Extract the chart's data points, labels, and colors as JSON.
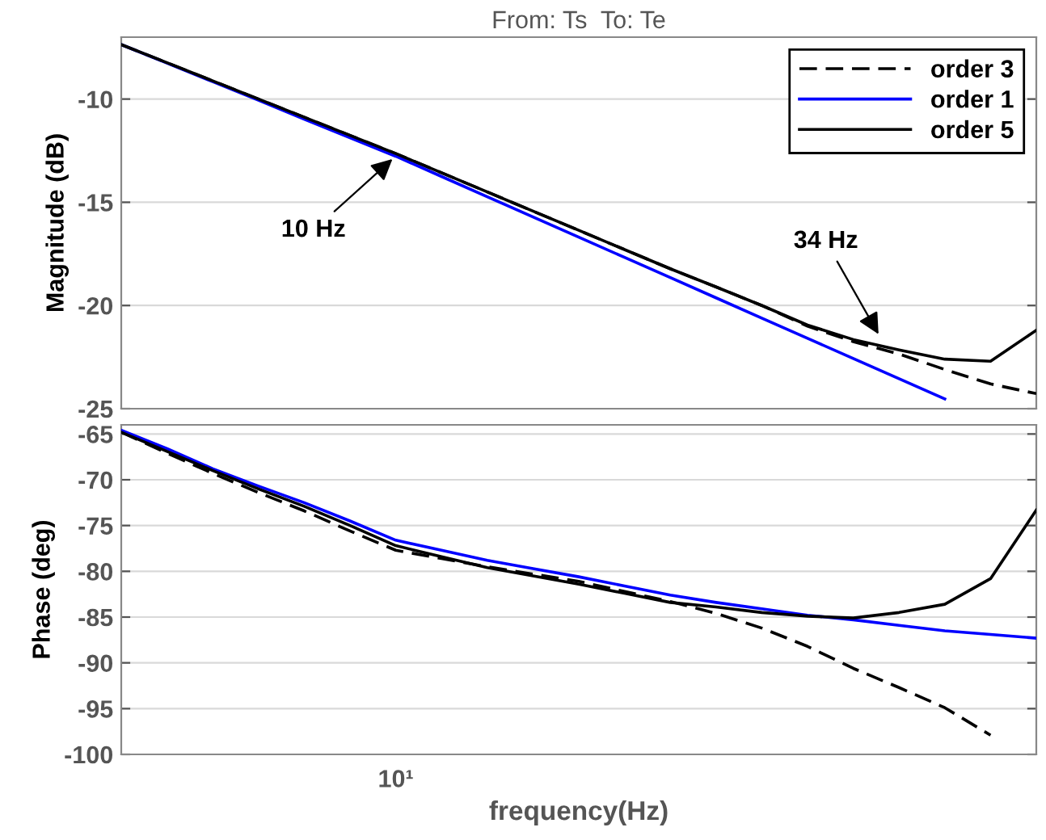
{
  "chart_data": [
    {
      "type": "line",
      "title": "From: Ts  To: Te",
      "ylabel": "Magnitude (dB)",
      "grid": "y",
      "legend": "top right",
      "categories": [
        null,
        null,
        null,
        null,
        null,
        null,
        null,
        null,
        null,
        null,
        null,
        null,
        null,
        null,
        null,
        null,
        null,
        null,
        null,
        null,
        null
      ],
      "ylim": [
        -25,
        -7
      ],
      "yticks": [
        -25,
        -20,
        -15,
        -10
      ],
      "annotations": [
        "10 Hz",
        "34 Hz"
      ],
      "series": [
        {
          "name": "order 3",
          "color": "#000000",
          "line_style": "dashed",
          "values": [
            -7.36,
            -8.24,
            -9.12,
            -10.0,
            -10.88,
            -11.76,
            -12.64,
            -13.57,
            -14.5,
            -15.43,
            -16.36,
            -17.29,
            -18.22,
            -19.1,
            -20.0,
            -21.0,
            -21.75,
            -22.35,
            -23.1,
            -23.8,
            -24.27
          ]
        },
        {
          "name": "order 1",
          "color": "#0000ff",
          "line_style": "solid",
          "values": [
            -7.36,
            -8.26,
            -9.16,
            -10.06,
            -10.97,
            -11.87,
            -12.77,
            -13.75,
            -14.73,
            -15.71,
            -16.69,
            -17.67,
            -18.65,
            -19.63,
            -20.61,
            -21.59,
            -22.57,
            -23.55,
            -24.53,
            null,
            null
          ]
        },
        {
          "name": "order 5",
          "color": "#000000",
          "line_style": "solid",
          "values": [
            -7.36,
            -8.24,
            -9.12,
            -10.0,
            -10.88,
            -11.76,
            -12.64,
            -13.57,
            -14.5,
            -15.43,
            -16.36,
            -17.29,
            -18.22,
            -19.1,
            -20.0,
            -20.95,
            -21.65,
            -22.15,
            -22.6,
            -22.7,
            -21.2
          ]
        }
      ]
    },
    {
      "type": "line",
      "xlabel": "frequency(Hz)",
      "ylabel": "Phase (deg)",
      "grid": "y",
      "categories": [
        null,
        null,
        null,
        null,
        null,
        null,
        null,
        null,
        null,
        null,
        null,
        null,
        null,
        null,
        null,
        null,
        null,
        null,
        null,
        null,
        null
      ],
      "ylim": [
        -100,
        -64
      ],
      "yticks": [
        -100,
        -95,
        -90,
        -85,
        -80,
        -75,
        -70,
        -65
      ],
      "annotations": [
        "10¹"
      ],
      "series": [
        {
          "color": "#000000",
          "line_style": "dashed",
          "values": [
            -64.8,
            -67.1,
            -69.3,
            -71.4,
            -73.4,
            -75.6,
            -77.7,
            -78.6,
            -79.5,
            -80.3,
            -81.1,
            -82.2,
            -83.3,
            -84.6,
            -86.2,
            -88.2,
            -90.6,
            -92.7,
            -94.9,
            -97.9,
            null
          ]
        },
        {
          "color": "#0000ff",
          "line_style": "solid",
          "values": [
            -64.6,
            -66.6,
            -68.8,
            -70.7,
            -72.5,
            -74.5,
            -76.6,
            -77.7,
            -78.8,
            -79.7,
            -80.6,
            -81.6,
            -82.6,
            -83.4,
            -84.1,
            -84.8,
            -85.3,
            -85.9,
            -86.5,
            -86.9,
            -87.3
          ]
        },
        {
          "color": "#000000",
          "line_style": "solid",
          "values": [
            -64.8,
            -66.9,
            -69.0,
            -71.0,
            -72.9,
            -75.0,
            -77.2,
            -78.4,
            -79.6,
            -80.5,
            -81.4,
            -82.4,
            -83.4,
            -83.9,
            -84.5,
            -84.9,
            -85.1,
            -84.5,
            -83.6,
            -80.8,
            -73.3
          ]
        }
      ]
    }
  ]
}
